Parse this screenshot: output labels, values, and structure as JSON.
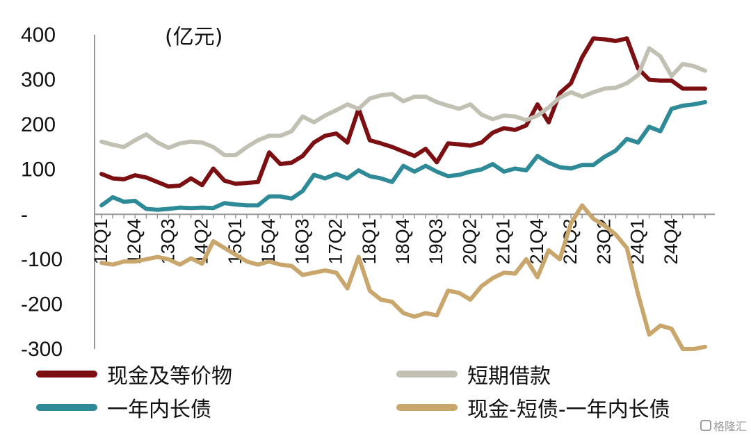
{
  "chart_data": {
    "type": "line",
    "unit_label": "(亿元)",
    "ylim": [
      -300,
      400
    ],
    "y_ticks": [
      400,
      300,
      200,
      100,
      0,
      -100,
      -200,
      -300
    ],
    "y_tick_labels": [
      "400",
      "300",
      "200",
      "100",
      "-",
      "-100",
      "-200",
      "-300"
    ],
    "x": [
      "12Q1",
      "12Q2",
      "12Q3",
      "12Q4",
      "13Q1",
      "13Q2",
      "13Q3",
      "13Q4",
      "14Q1",
      "14Q2",
      "14Q3",
      "14Q4",
      "15Q1",
      "15Q2",
      "15Q3",
      "15Q4",
      "16Q1",
      "16Q2",
      "16Q3",
      "16Q4",
      "17Q1",
      "17Q2",
      "17Q3",
      "17Q4",
      "18Q1",
      "18Q2",
      "18Q3",
      "18Q4",
      "19Q1",
      "19Q2",
      "19Q3",
      "19Q4",
      "20Q1",
      "20Q2",
      "20Q3",
      "20Q4",
      "21Q1",
      "21Q2",
      "21Q3",
      "21Q4",
      "22Q1",
      "22Q2",
      "22Q3",
      "22Q4",
      "23Q1",
      "23Q2",
      "23Q3",
      "23Q4",
      "24Q1",
      "24Q2",
      "24Q3",
      "24Q4",
      "25Q1",
      "25Q2",
      "25Q3"
    ],
    "x_tick_labels": [
      "12Q1",
      "12Q4",
      "13Q3",
      "14Q2",
      "15Q1",
      "15Q4",
      "16Q3",
      "17Q2",
      "18Q1",
      "18Q4",
      "19Q3",
      "20Q2",
      "21Q1",
      "21Q4",
      "22Q3",
      "23Q2",
      "24Q1",
      "24Q4"
    ],
    "grid": false,
    "legend_position": "bottom",
    "series": [
      {
        "name": "现金及等价物",
        "color": "#7b0f12",
        "values": [
          90,
          80,
          78,
          87,
          82,
          72,
          62,
          64,
          80,
          65,
          102,
          75,
          68,
          70,
          72,
          138,
          112,
          115,
          130,
          160,
          175,
          180,
          160,
          235,
          165,
          158,
          150,
          140,
          130,
          146,
          116,
          158,
          156,
          153,
          160,
          182,
          192,
          188,
          198,
          245,
          205,
          270,
          292,
          350,
          392,
          390,
          386,
          392,
          325,
          300,
          298,
          298,
          280,
          280,
          280
        ]
      },
      {
        "name": "短期借款",
        "color": "#c2c0b3",
        "values": [
          162,
          155,
          150,
          165,
          178,
          160,
          148,
          158,
          162,
          160,
          150,
          132,
          132,
          150,
          165,
          175,
          175,
          185,
          218,
          205,
          220,
          232,
          245,
          235,
          258,
          265,
          268,
          252,
          262,
          262,
          250,
          242,
          235,
          245,
          222,
          212,
          220,
          218,
          210,
          220,
          238,
          260,
          272,
          262,
          272,
          280,
          282,
          292,
          310,
          370,
          352,
          308,
          335,
          330,
          320
        ]
      },
      {
        "name": "一年内长债",
        "color": "#2f8a98",
        "values": [
          20,
          38,
          28,
          30,
          12,
          10,
          12,
          15,
          14,
          15,
          14,
          25,
          22,
          20,
          20,
          40,
          40,
          35,
          52,
          88,
          80,
          90,
          80,
          98,
          85,
          80,
          72,
          108,
          95,
          108,
          95,
          85,
          88,
          95,
          100,
          112,
          95,
          102,
          98,
          130,
          115,
          105,
          102,
          110,
          110,
          128,
          142,
          168,
          160,
          195,
          185,
          235,
          242,
          245,
          250
        ]
      },
      {
        "name": "现金-短债-一年内长债",
        "color": "#c9a66b",
        "values": [
          -108,
          -112,
          -105,
          -105,
          -100,
          -95,
          -100,
          -112,
          -98,
          -110,
          -60,
          -75,
          -90,
          -105,
          -112,
          -105,
          -112,
          -115,
          -135,
          -130,
          -125,
          -130,
          -165,
          -95,
          -170,
          -190,
          -195,
          -220,
          -228,
          -220,
          -225,
          -170,
          -175,
          -190,
          -160,
          -142,
          -130,
          -132,
          -100,
          -140,
          -80,
          -100,
          -20,
          20,
          -10,
          -25,
          -45,
          -75,
          -178,
          -268,
          -248,
          -255,
          -300,
          -300,
          -295
        ]
      }
    ]
  }
}
